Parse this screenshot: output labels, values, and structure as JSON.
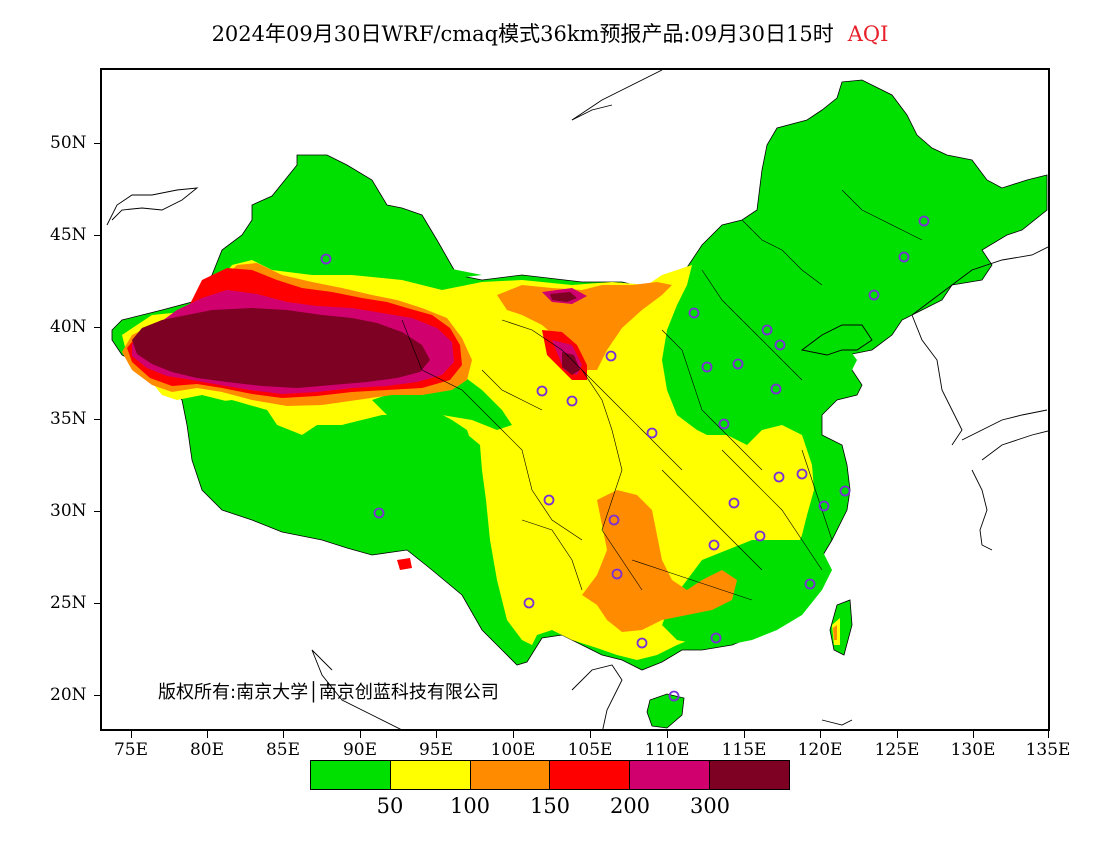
{
  "title": {
    "main": "2024年09月30日WRF/cmaq模式36km预报产品:09月30日15时",
    "variable": "AQI"
  },
  "axes": {
    "y_labels": [
      "50N",
      "45N",
      "40N",
      "35N",
      "30N",
      "25N",
      "20N"
    ],
    "x_labels": [
      "75E",
      "80E",
      "85E",
      "90E",
      "95E",
      "100E",
      "105E",
      "110E",
      "115E",
      "120E",
      "125E",
      "130E",
      "135E"
    ]
  },
  "copyright": "版权所有:南京大学│南京创蓝科技有限公司",
  "legend": {
    "colors": [
      "#00e000",
      "#ffff00",
      "#ff8c00",
      "#ff0000",
      "#d0006f",
      "#7e0023"
    ],
    "labels": [
      "50",
      "100",
      "150",
      "200",
      "300"
    ]
  },
  "colors": {
    "good": "#00e000",
    "moderate": "#ffff00",
    "sensitive": "#ff8c00",
    "unhealthy": "#ff0000",
    "very_unhealthy": "#d0006f",
    "hazardous": "#7e0023",
    "station": "#7b2fd6"
  }
}
